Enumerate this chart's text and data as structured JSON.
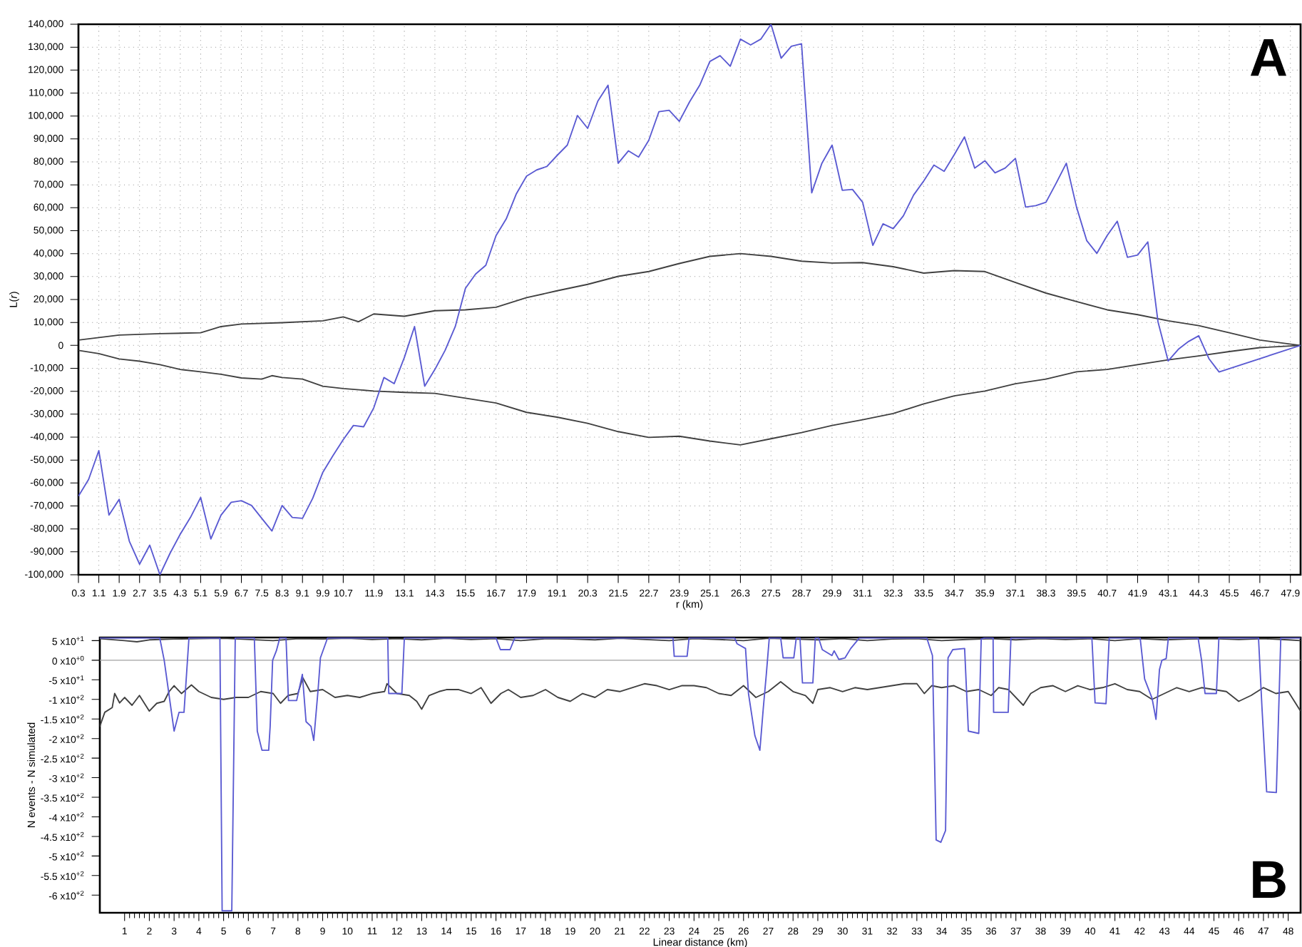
{
  "chart_data": [
    {
      "type": "line",
      "xlabel": "r (km)",
      "ylabel": "L(*r*)",
      "annotations": [
        "A"
      ],
      "grid": true,
      "xlim": [
        0.3,
        48.3
      ],
      "ylim": [
        -100000,
        140000
      ],
      "xticks": [
        0.3,
        1.1,
        1.9,
        2.7,
        3.5,
        4.3,
        5.1,
        5.9,
        6.7,
        7.5,
        8.3,
        9.1,
        9.9,
        10.7,
        11.9,
        13.1,
        14.3,
        15.5,
        16.7,
        17.9,
        19.1,
        20.3,
        21.5,
        22.7,
        23.9,
        25.1,
        26.3,
        27.5,
        28.7,
        29.9,
        31.1,
        32.3,
        33.5,
        34.7,
        35.9,
        37.1,
        38.3,
        39.5,
        40.7,
        41.9,
        43.1,
        44.3,
        45.5,
        46.7,
        47.9
      ],
      "yticks": [
        {
          "value": 140000,
          "label": "140,000"
        },
        {
          "value": 130000,
          "label": "130,000"
        },
        {
          "value": 120000,
          "label": "120,000"
        },
        {
          "value": 110000,
          "label": "110,000"
        },
        {
          "value": 100000,
          "label": "100,000"
        },
        {
          "value": 90000,
          "label": "90,000"
        },
        {
          "value": 80000,
          "label": "80,000"
        },
        {
          "value": 70000,
          "label": "70,000"
        },
        {
          "value": 60000,
          "label": "60,000"
        },
        {
          "value": 50000,
          "label": "50,000"
        },
        {
          "value": 40000,
          "label": "40,000"
        },
        {
          "value": 30000,
          "label": "30,000"
        },
        {
          "value": 20000,
          "label": "20,000"
        },
        {
          "value": 10000,
          "label": "10,000"
        },
        0,
        {
          "value": -10000,
          "label": "-10,000"
        },
        {
          "value": -20000,
          "label": "-20,000"
        },
        {
          "value": -30000,
          "label": "-30,000"
        },
        {
          "value": -40000,
          "label": "-40,000"
        },
        {
          "value": -50000,
          "label": "-50,000"
        },
        {
          "value": -60000,
          "label": "-60,000"
        },
        {
          "value": -70000,
          "label": "-70,000"
        },
        {
          "value": -80000,
          "label": "-80,000"
        },
        {
          "value": -90000,
          "label": "-90,000"
        },
        {
          "value": -100000,
          "label": "-100,000"
        }
      ],
      "series": [
        {
          "color": "#404040",
          "x": [
            0.3,
            1.9,
            3.5,
            5.1,
            5.9,
            6.7,
            8.3,
            9.9,
            10.7,
            11.3,
            11.9,
            13.1,
            14.3,
            15.5,
            16.7,
            17.9,
            19.1,
            20.3,
            21.5,
            22.7,
            23.9,
            25.1,
            26.3,
            27.5,
            28.7,
            29.9,
            31.1,
            32.3,
            33.5,
            34.7,
            35.9,
            37.1,
            38.3,
            39.5,
            40.7,
            41.9,
            43.1,
            44.3,
            45.5,
            46.7,
            48.3
          ],
          "values": [
            2300,
            4500,
            5100,
            5500,
            8200,
            9300,
            9900,
            10700,
            12400,
            10300,
            13700,
            12700,
            15100,
            15500,
            16600,
            20800,
            23800,
            26600,
            30100,
            32200,
            35700,
            38800,
            40000,
            38800,
            36700,
            35900,
            36100,
            34300,
            31500,
            32600,
            32200,
            27400,
            22800,
            19100,
            15500,
            13400,
            10700,
            8600,
            5500,
            2300,
            0
          ]
        },
        {
          "color": "#404040",
          "x": [
            0.3,
            1.1,
            1.9,
            2.7,
            3.5,
            4.3,
            5.1,
            5.9,
            6.7,
            7.5,
            7.9,
            8.3,
            9.1,
            9.9,
            10.7,
            11.9,
            13.1,
            14.3,
            15.5,
            16.7,
            17.9,
            19.1,
            20.3,
            21.5,
            22.7,
            23.9,
            25.1,
            26.3,
            27.5,
            28.7,
            29.9,
            31.1,
            32.3,
            33.5,
            34.7,
            35.9,
            37.1,
            38.3,
            39.5,
            40.7,
            41.9,
            43.1,
            44.3,
            45.5,
            46.7,
            48.3
          ],
          "values": [
            -2200,
            -3600,
            -5900,
            -6900,
            -8400,
            -10500,
            -11500,
            -12600,
            -14200,
            -14700,
            -13200,
            -14000,
            -14700,
            -17800,
            -18800,
            -19900,
            -20500,
            -20900,
            -23000,
            -25100,
            -29200,
            -31300,
            -34000,
            -37600,
            -40100,
            -39600,
            -41700,
            -43400,
            -40700,
            -38000,
            -34900,
            -32400,
            -29700,
            -25500,
            -22000,
            -19900,
            -16700,
            -14700,
            -11500,
            -10500,
            -8400,
            -6300,
            -4600,
            -2700,
            -1000,
            0
          ]
        },
        {
          "color": "#5a5ad2",
          "x": [
            0.3,
            0.7,
            1.1,
            1.5,
            1.9,
            2.3,
            2.7,
            3.1,
            3.5,
            3.9,
            4.3,
            4.7,
            5.1,
            5.5,
            5.9,
            6.3,
            6.7,
            7.1,
            7.5,
            7.9,
            8.3,
            8.7,
            9.1,
            9.5,
            9.9,
            10.3,
            10.7,
            11.1,
            11.5,
            11.9,
            12.3,
            12.7,
            13.1,
            13.5,
            13.9,
            14.3,
            14.7,
            15.1,
            15.5,
            15.9,
            16.3,
            16.7,
            17.1,
            17.5,
            17.9,
            18.3,
            18.7,
            19.1,
            19.5,
            19.9,
            20.3,
            20.7,
            21.1,
            21.5,
            21.9,
            22.3,
            22.7,
            23.1,
            23.5,
            23.9,
            24.3,
            24.7,
            25.1,
            25.5,
            25.9,
            26.3,
            26.7,
            27.1,
            27.5,
            27.9,
            28.3,
            28.7,
            29.1,
            29.5,
            29.9,
            30.3,
            30.7,
            31.1,
            31.5,
            31.9,
            32.3,
            32.7,
            33.1,
            33.5,
            33.9,
            34.3,
            34.7,
            35.1,
            35.5,
            35.9,
            36.3,
            36.7,
            37.1,
            37.5,
            37.9,
            38.3,
            38.7,
            39.1,
            39.5,
            39.9,
            40.3,
            40.7,
            41.1,
            41.5,
            41.9,
            42.3,
            42.7,
            43.1,
            43.5,
            43.9,
            44.3,
            44.7,
            45.1,
            48.3
          ],
          "values": [
            -65700,
            -58400,
            -45900,
            -74000,
            -67100,
            -85400,
            -95400,
            -87100,
            -100000,
            -90600,
            -82300,
            -75000,
            -66300,
            -84400,
            -74000,
            -68400,
            -67700,
            -69800,
            -75400,
            -80900,
            -69800,
            -75000,
            -75400,
            -66700,
            -55300,
            -48000,
            -41100,
            -34900,
            -35500,
            -27200,
            -14000,
            -16700,
            -5300,
            8200,
            -17800,
            -10500,
            -2200,
            8200,
            24900,
            31100,
            34900,
            47800,
            55100,
            66100,
            73800,
            76500,
            78000,
            82800,
            87300,
            100200,
            94600,
            106500,
            113400,
            79400,
            84800,
            82100,
            89400,
            101900,
            102500,
            97700,
            106100,
            113400,
            123800,
            126300,
            121700,
            133500,
            131000,
            133500,
            140000,
            125200,
            130400,
            131500,
            66500,
            79400,
            87300,
            67600,
            68000,
            62400,
            43600,
            53000,
            50900,
            56500,
            65500,
            71700,
            78600,
            75900,
            83200,
            90900,
            77300,
            80500,
            75200,
            77300,
            81500,
            60300,
            60900,
            62400,
            70700,
            79400,
            60300,
            45700,
            40100,
            47800,
            54100,
            38400,
            39400,
            45100,
            10300,
            -6800,
            -1700,
            1700,
            4200,
            -5800,
            -11600,
            0
          ]
        }
      ]
    },
    {
      "type": "line",
      "xlabel": "Linear distance (km)",
      "ylabel": "N events - N simulated",
      "annotations": [
        "B"
      ],
      "xlim": [
        0,
        48.5
      ],
      "ylim": [
        -645,
        58
      ],
      "xticks": [
        1,
        2,
        3,
        4,
        5,
        6,
        7,
        8,
        9,
        10,
        11,
        12,
        13,
        14,
        15,
        16,
        17,
        18,
        19,
        20,
        21,
        22,
        23,
        24,
        25,
        26,
        27,
        28,
        29,
        30,
        31,
        32,
        33,
        34,
        35,
        36,
        37,
        38,
        39,
        40,
        41,
        42,
        43,
        44,
        45,
        46,
        47,
        48
      ],
      "yticks": [
        {
          "value": 50,
          "label": "5 x10$^{+1}$"
        },
        {
          "value": 0,
          "label": "0 x10$^{+0}$"
        },
        {
          "value": -50,
          "label": "-5 x10$^{+1}$"
        },
        {
          "value": -100,
          "label": "-1 x10$^{+2}$"
        },
        {
          "value": -150,
          "label": "-1.5 x10$^{+2}$"
        },
        {
          "value": -200,
          "label": "-2 x10$^{+2}$"
        },
        {
          "value": -250,
          "label": "-2.5 x10$^{+2}$"
        },
        {
          "value": -300,
          "label": "-3 x10$^{+2}$"
        },
        {
          "value": -350,
          "label": "-3.5 x10$^{+2}$"
        },
        {
          "value": -400,
          "label": "-4 x10$^{+2}$"
        },
        {
          "value": -450,
          "label": "-4.5 x10$^{+2}$"
        },
        {
          "value": -500,
          "label": "-5 x10$^{+2}$"
        },
        {
          "value": -550,
          "label": "-5.5 x10$^{+2}$"
        },
        {
          "value": -600,
          "label": "-6 x10$^{+2}$"
        }
      ],
      "ref_lines": [
        {
          "axis": "y",
          "value": 0,
          "color": "#a0a0a0"
        }
      ],
      "series": [
        {
          "color": "#404040",
          "x": [
            0,
            1,
            1.5,
            2,
            3,
            4,
            5,
            6,
            7,
            8,
            9,
            10,
            11,
            12,
            13,
            14,
            15,
            16,
            17,
            18,
            19,
            20,
            21,
            22,
            23,
            24,
            25,
            26,
            27,
            28,
            29,
            30,
            31,
            32,
            33,
            34,
            35,
            36,
            37,
            38,
            39,
            40,
            41,
            42,
            43,
            44,
            45,
            46,
            47,
            48,
            48.5
          ],
          "values": [
            55,
            50,
            47,
            52,
            54,
            55,
            56,
            53,
            50,
            55,
            54,
            56,
            53,
            55,
            52,
            56,
            53,
            55,
            50,
            55,
            54,
            52,
            56,
            53,
            50,
            55,
            53,
            50,
            56,
            54,
            52,
            55,
            50,
            54,
            55,
            50,
            53,
            55,
            52,
            55,
            53,
            55,
            50,
            55,
            52,
            54,
            55,
            53,
            55,
            52,
            50
          ]
        },
        {
          "color": "#404040",
          "x": [
            0,
            0.2,
            0.5,
            0.6,
            0.8,
            1.0,
            1.3,
            1.6,
            1.8,
            2.0,
            2.3,
            2.6,
            2.8,
            3.0,
            3.3,
            3.7,
            4.0,
            4.5,
            5.0,
            5.5,
            6.0,
            6.5,
            7.0,
            7.3,
            7.6,
            8.0,
            8.2,
            8.5,
            9.0,
            9.5,
            10,
            10.5,
            11,
            11.5,
            11.6,
            12,
            12.5,
            12.8,
            13.0,
            13.3,
            13.7,
            14,
            14.5,
            15,
            15.4,
            15.8,
            16.2,
            16.5,
            17,
            17.5,
            18,
            18.5,
            19,
            19.5,
            20,
            20.5,
            21,
            21.5,
            22,
            22.5,
            23,
            23.5,
            24,
            24.5,
            25,
            25.5,
            26,
            26.5,
            27,
            27.5,
            28,
            28.5,
            28.8,
            29,
            29.5,
            30,
            30.5,
            31,
            31.5,
            32,
            32.5,
            33,
            33.3,
            33.6,
            34,
            34.5,
            35,
            35.5,
            36,
            36.3,
            36.7,
            37,
            37.3,
            37.6,
            38,
            38.5,
            39,
            39.5,
            40,
            40.5,
            41,
            41.5,
            42,
            42.5,
            43,
            43.5,
            44,
            44.5,
            45,
            45.5,
            46,
            46.5,
            47,
            47.5,
            48,
            48.5
          ],
          "values": [
            -169,
            -133,
            -121,
            -85,
            -109,
            -95,
            -115,
            -90,
            -110,
            -130,
            -110,
            -105,
            -80,
            -65,
            -85,
            -63,
            -80,
            -95,
            -100,
            -95,
            -95,
            -80,
            -85,
            -110,
            -90,
            -85,
            -45,
            -80,
            -75,
            -95,
            -90,
            -95,
            -85,
            -80,
            -60,
            -85,
            -90,
            -105,
            -125,
            -90,
            -80,
            -75,
            -75,
            -85,
            -70,
            -110,
            -85,
            -75,
            -95,
            -90,
            -75,
            -95,
            -105,
            -85,
            -95,
            -75,
            -80,
            -70,
            -60,
            -65,
            -75,
            -65,
            -65,
            -70,
            -85,
            -90,
            -65,
            -95,
            -80,
            -55,
            -80,
            -90,
            -110,
            -75,
            -70,
            -80,
            -70,
            -75,
            -70,
            -65,
            -60,
            -60,
            -85,
            -65,
            -70,
            -65,
            -80,
            -75,
            -90,
            -70,
            -75,
            -95,
            -115,
            -85,
            -70,
            -65,
            -80,
            -65,
            -75,
            -70,
            -60,
            -75,
            -80,
            -100,
            -85,
            -70,
            -80,
            -70,
            -75,
            -80,
            -105,
            -90,
            -70,
            -85,
            -80,
            -130
          ]
        },
        {
          "color": "#5a5ad2",
          "x": [
            0,
            2.42,
            2.6,
            3.0,
            3.2,
            3.4,
            3.6,
            4.85,
            4.94,
            5.33,
            5.47,
            6.24,
            6.36,
            6.55,
            6.82,
            6.88,
            6.98,
            7.13,
            7.27,
            7.52,
            7.62,
            7.95,
            8.18,
            8.33,
            8.53,
            8.64,
            8.82,
            8.91,
            9.2,
            11.63,
            11.67,
            12.2,
            12.3,
            16.0,
            16.18,
            16.57,
            16.76,
            23.15,
            23.2,
            23.72,
            23.8,
            25.64,
            25.74,
            26.08,
            26.2,
            26.46,
            26.66,
            26.8,
            26.92,
            27.04,
            27.5,
            27.6,
            28.03,
            28.13,
            28.28,
            28.38,
            28.8,
            28.9,
            29.03,
            29.18,
            29.57,
            29.66,
            29.85,
            30.1,
            30.33,
            30.68,
            33.4,
            33.63,
            33.78,
            33.97,
            34.16,
            34.26,
            34.45,
            34.93,
            35.08,
            35.5,
            35.6,
            35.75,
            36.08,
            36.1,
            36.69,
            36.8,
            40.07,
            40.2,
            40.64,
            40.77,
            42.02,
            42.2,
            42.5,
            42.66,
            42.8,
            42.9,
            43.07,
            43.16,
            44.36,
            44.5,
            44.64,
            45.1,
            45.2,
            46.8,
            46.94,
            47.13,
            47.52,
            47.7,
            48.5
          ],
          "values": [
            57,
            57,
            0,
            -181,
            -133,
            -133,
            57,
            57,
            -640,
            -640,
            57,
            57,
            -181,
            -230,
            -230,
            -169,
            0,
            24,
            57,
            57,
            -103,
            -103,
            -36,
            -157,
            -169,
            -205,
            -72,
            6,
            57,
            57,
            -85,
            -85,
            57,
            57,
            27,
            27,
            57,
            57,
            10,
            10,
            57,
            57,
            42,
            30,
            -85,
            -193,
            -230,
            -121,
            -36,
            57,
            57,
            6,
            6,
            57,
            57,
            -58,
            -58,
            57,
            57,
            27,
            12,
            24,
            2,
            6,
            30,
            57,
            57,
            12,
            -459,
            -465,
            -435,
            6,
            27,
            30,
            -181,
            -187,
            54,
            57,
            57,
            -133,
            -133,
            57,
            57,
            -109,
            -111,
            57,
            57,
            -48,
            -97,
            -151,
            -24,
            0,
            4,
            57,
            57,
            0,
            -85,
            -85,
            57,
            57,
            -121,
            -336,
            -338,
            57,
            57
          ]
        }
      ]
    }
  ]
}
